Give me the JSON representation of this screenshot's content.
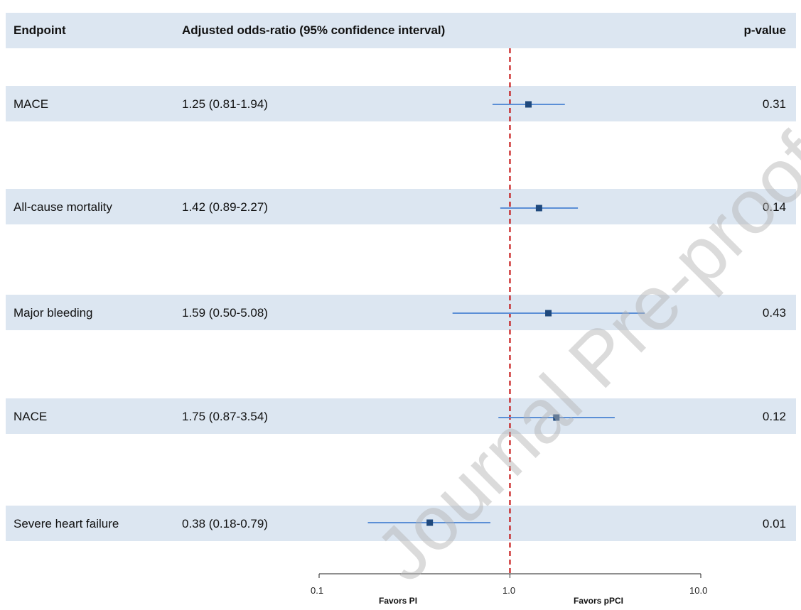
{
  "header": {
    "endpoint": "Endpoint",
    "or_column": "Adjusted odds-ratio (95% confidence interval)",
    "p_column": "p-value"
  },
  "rows": [
    {
      "label": "MACE",
      "or_text": "1.25 (0.81-1.94)",
      "p": "0.31"
    },
    {
      "label": "All-cause mortality",
      "or_text": "1.42 (0.89-2.27)",
      "p": "0.14"
    },
    {
      "label": "Major bleeding",
      "or_text": "1.59 (0.50-5.08)",
      "p": "0.43"
    },
    {
      "label": "NACE",
      "or_text": "1.75 (0.87-3.54)",
      "p": "0.12"
    },
    {
      "label": "Severe heart failure",
      "or_text": "0.38 (0.18-0.79)",
      "p": "0.01"
    }
  ],
  "axis": {
    "ticks": [
      "0.1",
      "1.0",
      "10.0"
    ],
    "favors_left": "Favors PI",
    "favors_right": "Favors pPCI"
  },
  "watermark": "Journal Pre-proof",
  "colors": {
    "band": "#dce6f1",
    "ci_line": "#5b8fd6",
    "point": "#1f497d",
    "reference_line": "#c00000"
  },
  "chart_data": {
    "type": "forest",
    "scale": "log",
    "xlim": [
      0.1,
      10.0
    ],
    "reference": 1.0,
    "points": [
      {
        "name": "MACE",
        "estimate": 1.25,
        "lower": 0.81,
        "upper": 1.94
      },
      {
        "name": "All-cause mortality",
        "estimate": 1.42,
        "lower": 0.89,
        "upper": 2.27
      },
      {
        "name": "Major bleeding",
        "estimate": 1.59,
        "lower": 0.5,
        "upper": 5.08
      },
      {
        "name": "NACE",
        "estimate": 1.75,
        "lower": 0.87,
        "upper": 3.54
      },
      {
        "name": "Severe heart failure",
        "estimate": 0.38,
        "lower": 0.18,
        "upper": 0.79
      }
    ],
    "tick_values": [
      0.1,
      1.0,
      10.0
    ]
  }
}
